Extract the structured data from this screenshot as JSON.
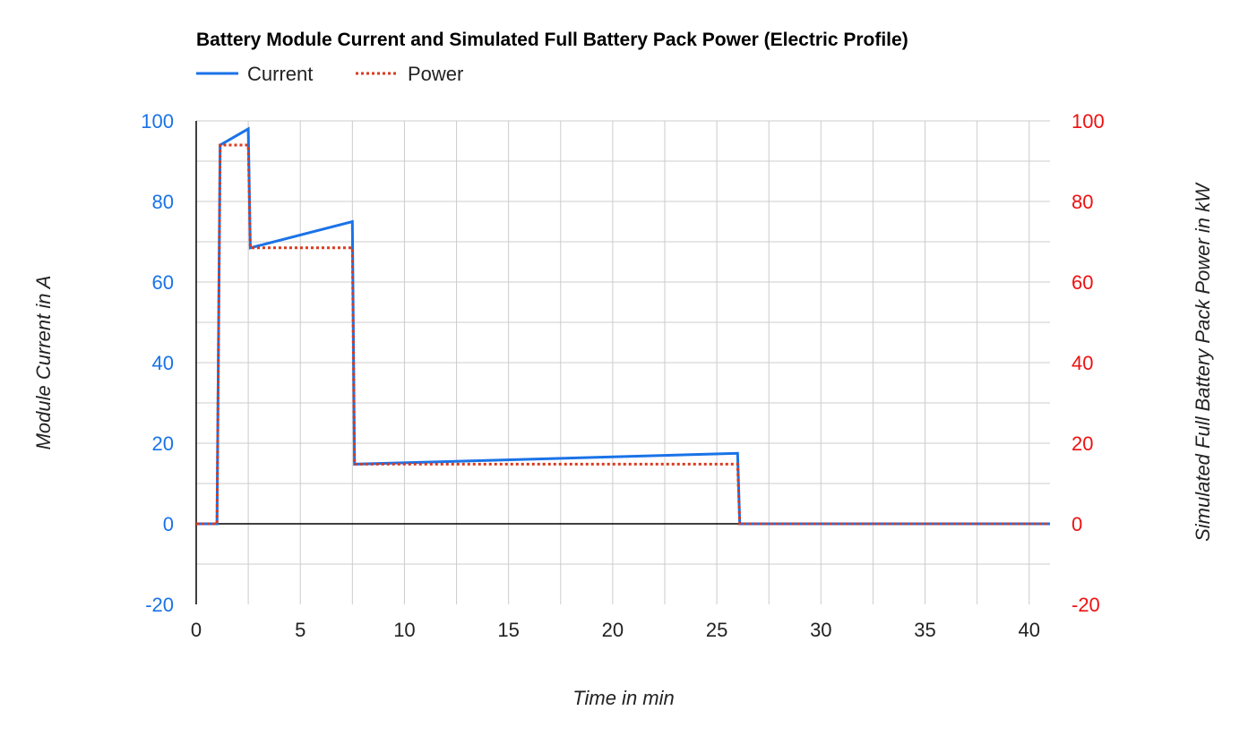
{
  "chart_data": {
    "type": "line",
    "title": "Battery Module Current and Simulated Full Battery Pack Power (Electric Profile)",
    "xlabel": "Time in min",
    "ylabel_left": "Module Current in A",
    "ylabel_right": "Simulated Full Battery Pack Power in kW",
    "xlim": [
      0,
      41
    ],
    "ylim_left": [
      -20,
      100
    ],
    "ylim_right": [
      -20,
      100
    ],
    "x_ticks": [
      0,
      5,
      10,
      15,
      20,
      25,
      30,
      35,
      40
    ],
    "y_ticks_left": [
      -20,
      0,
      20,
      40,
      60,
      80,
      100
    ],
    "y_ticks_right": [
      -20,
      0,
      20,
      40,
      60,
      80,
      100
    ],
    "grid": true,
    "legend_position": "top-left",
    "series": [
      {
        "name": "Current",
        "axis": "left",
        "color": "#1a73e8",
        "style": "solid",
        "points": [
          [
            0,
            0
          ],
          [
            1.0,
            0
          ],
          [
            1.15,
            94
          ],
          [
            2.5,
            98
          ],
          [
            2.6,
            68.5
          ],
          [
            7.5,
            75
          ],
          [
            7.6,
            14.8
          ],
          [
            26.0,
            17.5
          ],
          [
            26.1,
            0
          ],
          [
            41,
            0
          ]
        ]
      },
      {
        "name": "Power",
        "axis": "right",
        "color": "#d93a1e",
        "style": "dotted",
        "points": [
          [
            0,
            0
          ],
          [
            1.0,
            0
          ],
          [
            1.15,
            94
          ],
          [
            2.5,
            94
          ],
          [
            2.6,
            68.5
          ],
          [
            7.5,
            68.5
          ],
          [
            7.6,
            14.8
          ],
          [
            26.0,
            14.8
          ],
          [
            26.1,
            0
          ],
          [
            41,
            0
          ]
        ]
      }
    ],
    "left_tick_color": "#1a73e8",
    "right_tick_color": "#ee1111"
  }
}
